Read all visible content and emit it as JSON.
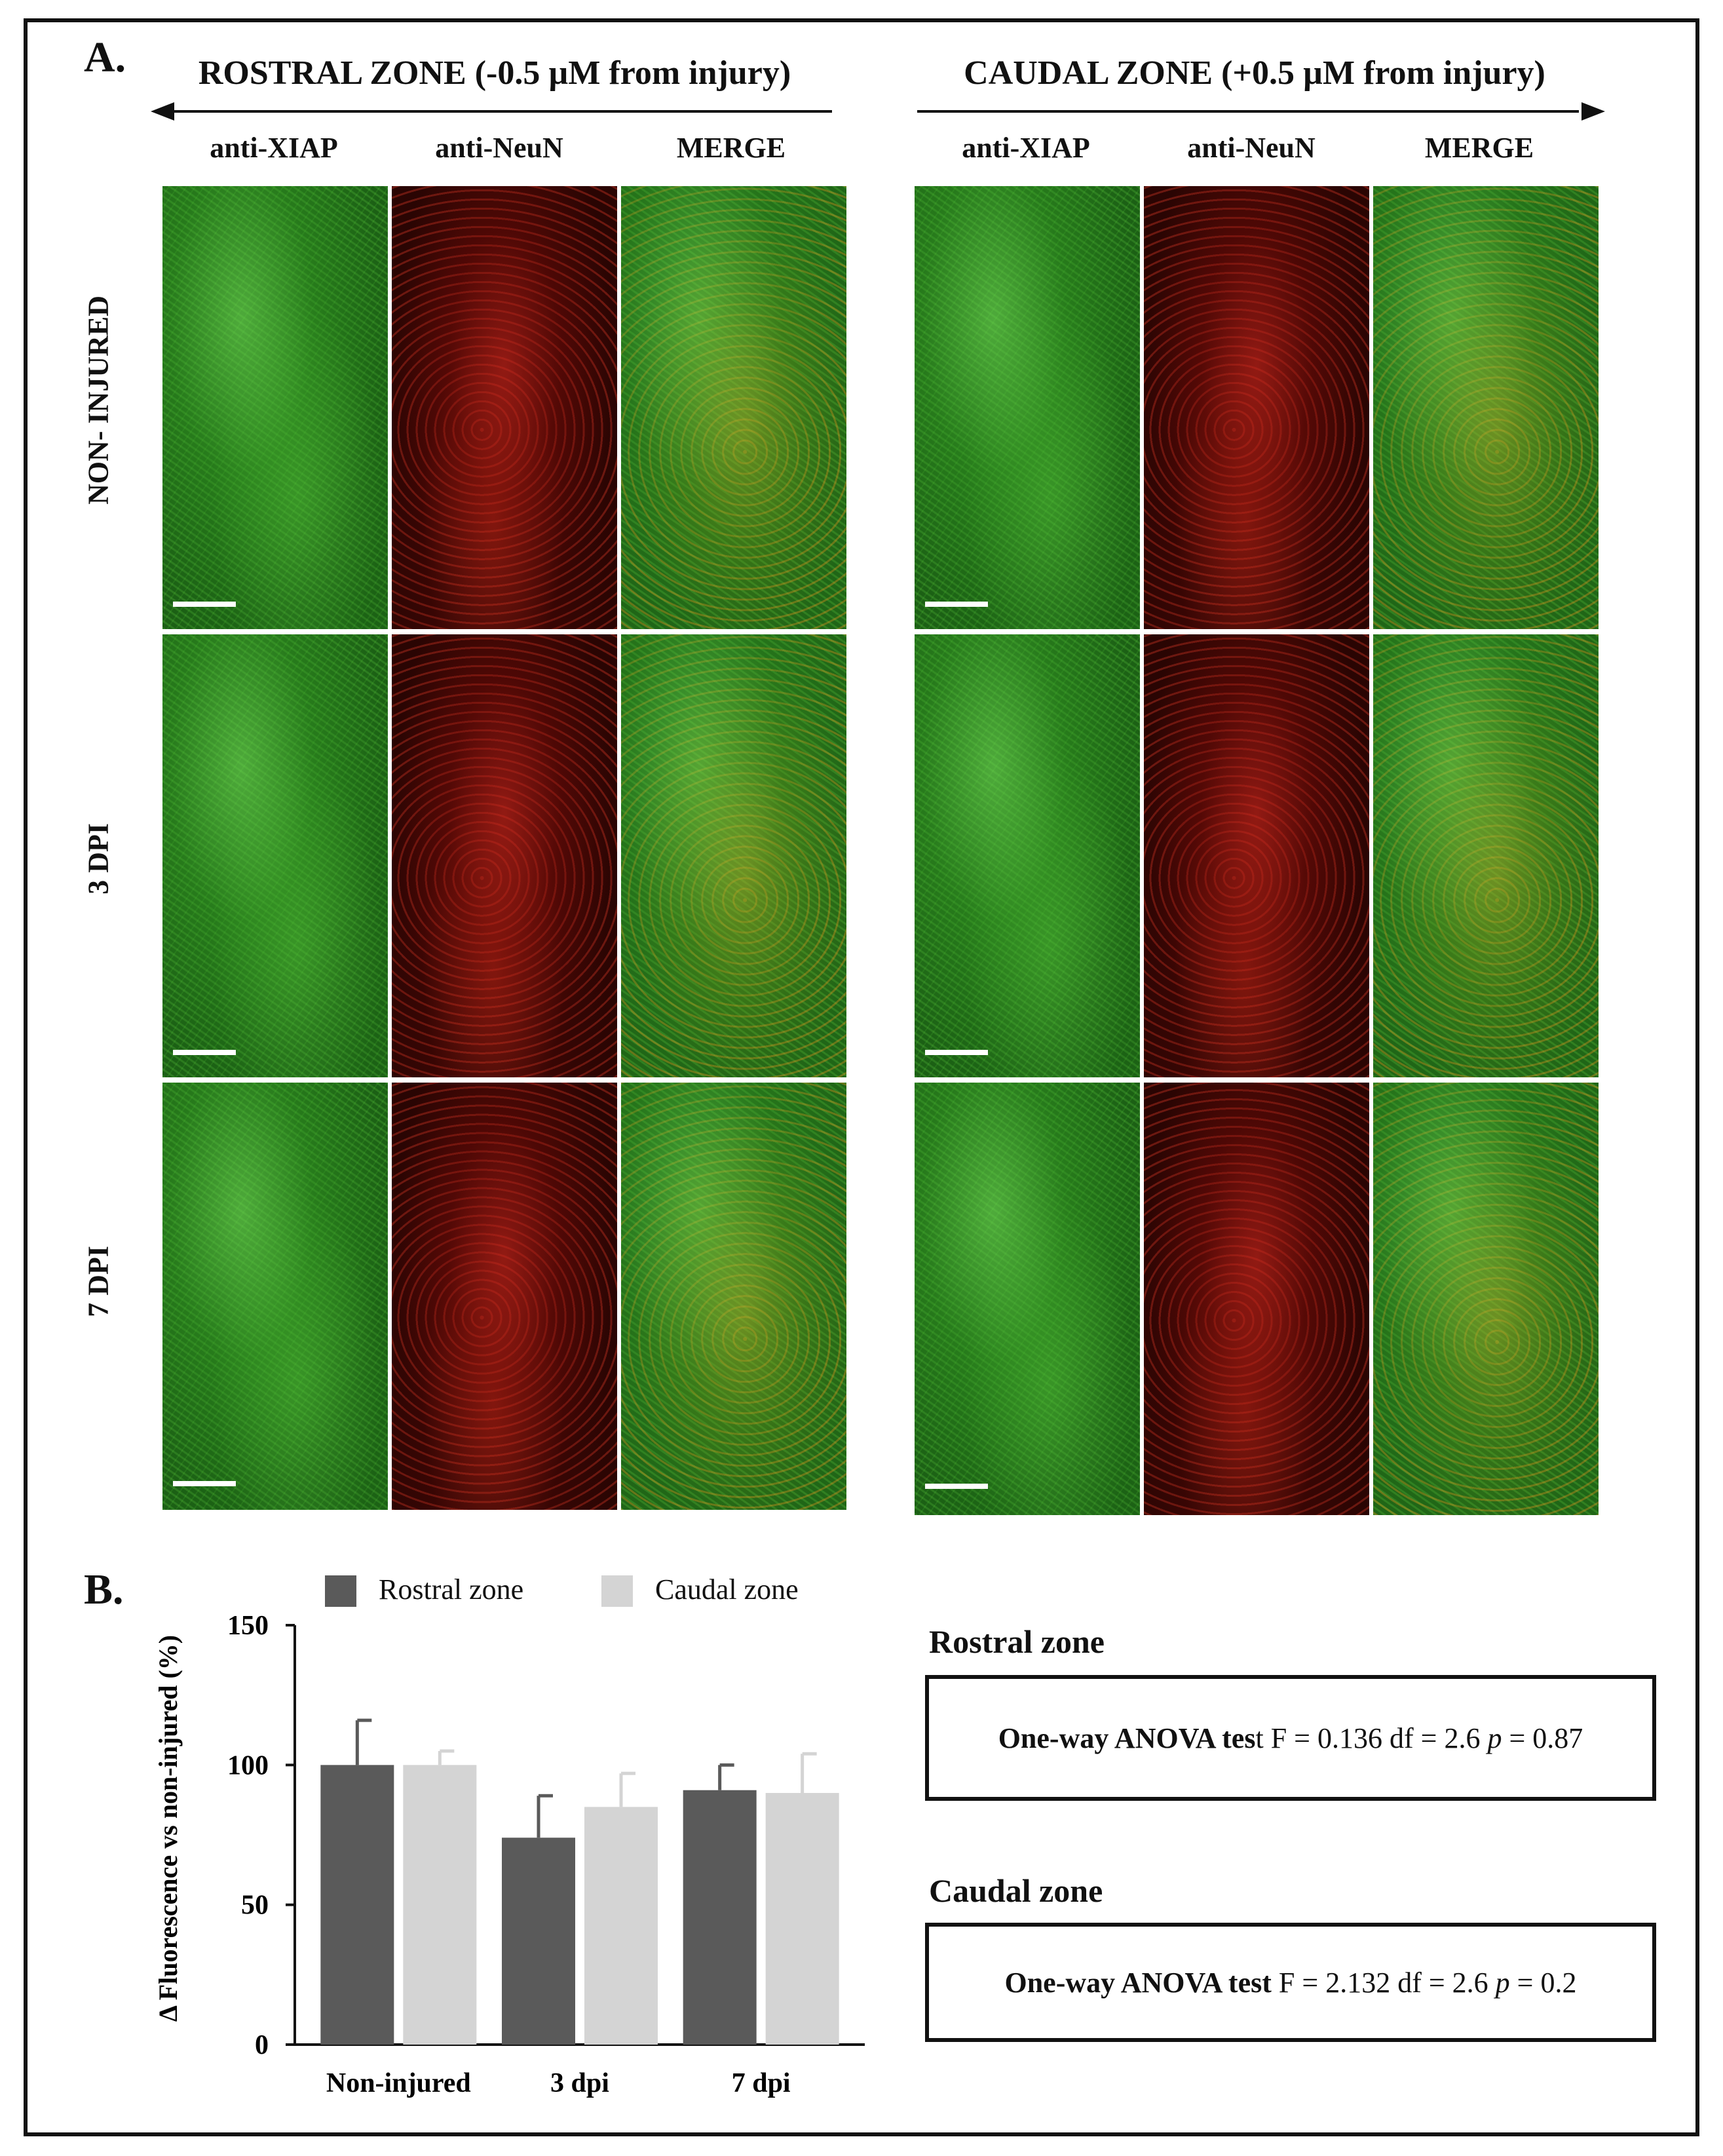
{
  "panel_a": {
    "letter": "A.",
    "rostral_title": "ROSTRAL ZONE (-0.5 µM from injury)",
    "caudal_title": "CAUDAL ZONE (+0.5 µM from injury)",
    "columns": [
      "anti-XIAP",
      "anti-NeuN",
      "MERGE",
      "anti-XIAP",
      "anti-NeuN",
      "MERGE"
    ],
    "rows": [
      "NON- INJURED",
      "3 DPI",
      "7 DPI"
    ]
  },
  "panel_b": {
    "letter": "B.",
    "legend": [
      {
        "label": "Rostral zone",
        "color": "#5a5a5a"
      },
      {
        "label": "Caudal zone",
        "color": "#d4d4d4"
      }
    ],
    "stats": {
      "rostral_head": "Rostral zone",
      "rostral_bold": "One-way ANOVA tes",
      "rostral_rest1": "t F = 0.136  df = 2.6  ",
      "rostral_p": "p",
      "rostral_rest2": " = 0.87",
      "caudal_head": "Caudal zone",
      "caudal_bold": "One-way ANOVA test",
      "caudal_rest1": " F = 2.132  df = 2.6  ",
      "caudal_p": "p",
      "caudal_rest2": " = 0.2"
    }
  },
  "chart_data": {
    "type": "bar",
    "categories": [
      "Non-injured",
      "3 dpi",
      "7 dpi"
    ],
    "series": [
      {
        "name": "Rostral zone",
        "values": [
          100,
          74,
          91
        ],
        "errors": [
          16,
          15,
          9
        ],
        "color": "#5a5a5a"
      },
      {
        "name": "Caudal zone",
        "values": [
          100,
          85,
          90
        ],
        "errors": [
          5,
          12,
          14
        ],
        "color": "#d4d4d4"
      }
    ],
    "ylabel": "Δ Fluorescence vs non-injured (%)",
    "xlabel": "",
    "ylim": [
      0,
      150
    ],
    "yticks": [
      0,
      50,
      100,
      150
    ],
    "grid": false,
    "legend_position": "top"
  }
}
